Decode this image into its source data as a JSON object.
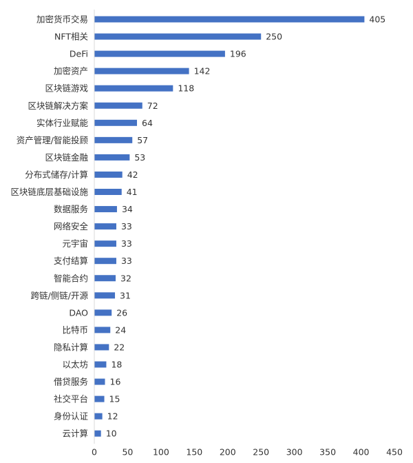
{
  "chart_data": {
    "type": "bar",
    "orientation": "horizontal",
    "categories": [
      "加密货币交易",
      "NFT相关",
      "DeFi",
      "加密资产",
      "区块链游戏",
      "区块链解决方案",
      "实体行业赋能",
      "资产管理/智能投顾",
      "区块链金融",
      "分布式储存/计算",
      "区块链底层基础设施",
      "数据服务",
      "网络安全",
      "元宇宙",
      "支付结算",
      "智能合约",
      "跨链/侧链/开源",
      "DAO",
      "比特币",
      "隐私计算",
      "以太坊",
      "借贷服务",
      "社交平台",
      "身份认证",
      "云计算"
    ],
    "values": [
      405,
      250,
      196,
      142,
      118,
      72,
      64,
      57,
      53,
      42,
      41,
      34,
      33,
      33,
      33,
      32,
      31,
      26,
      24,
      22,
      18,
      16,
      15,
      12,
      10
    ],
    "xlim": [
      0,
      450
    ],
    "x_ticks": [
      "0",
      "50",
      "100",
      "150",
      "200",
      "250",
      "300",
      "350",
      "400",
      "450"
    ],
    "bar_color": "#4472C4",
    "grid": false,
    "legend": "none",
    "title": "",
    "xlabel": "",
    "ylabel": ""
  }
}
